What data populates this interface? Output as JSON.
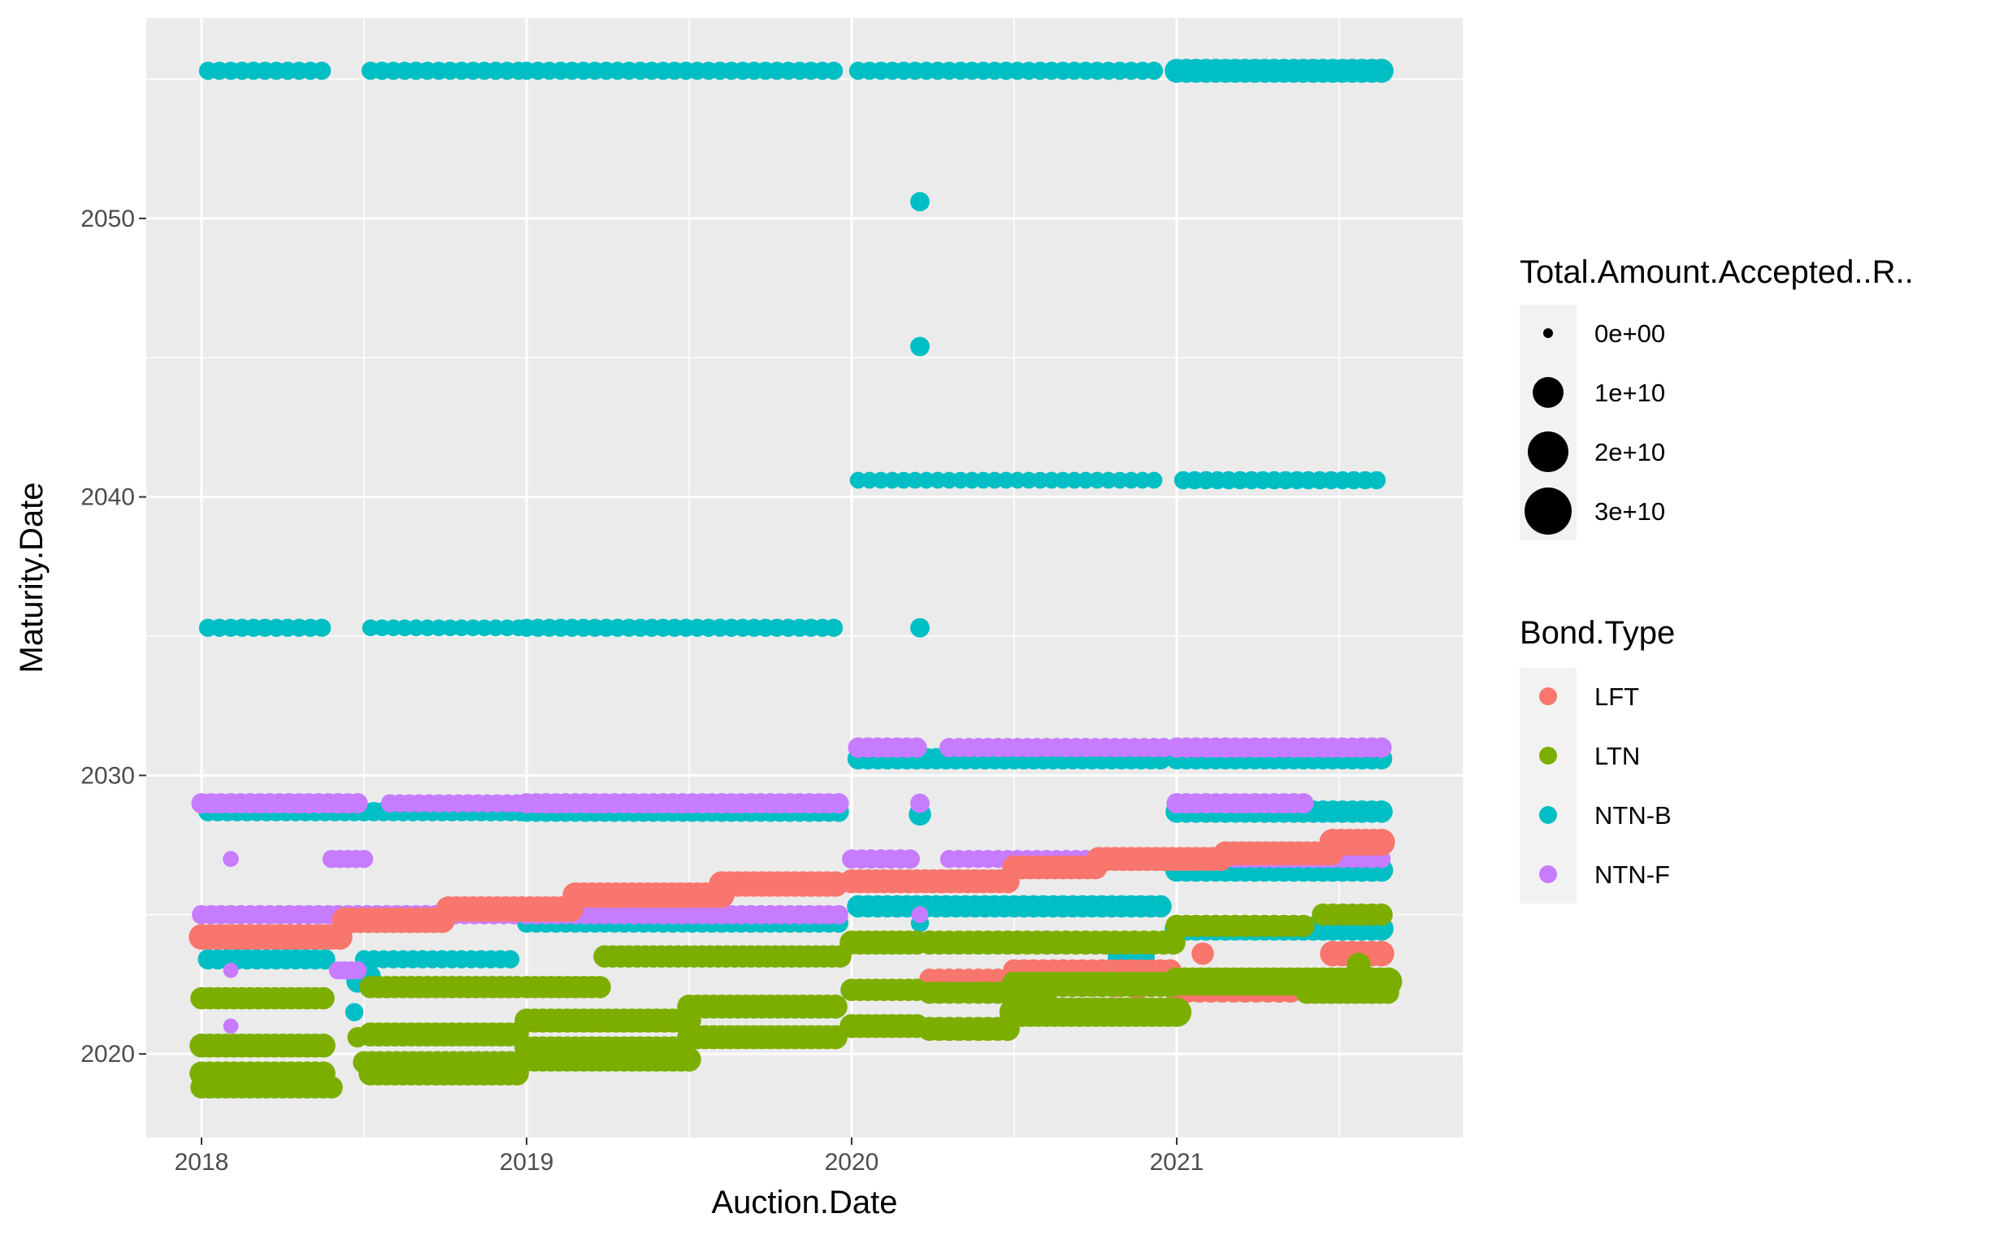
{
  "chart_data": {
    "type": "scatter",
    "title": "",
    "xlabel": "Auction.Date",
    "ylabel": "Maturity.Date",
    "xlim": [
      2017.83,
      2021.88
    ],
    "ylim": [
      2017.0,
      2057.2
    ],
    "x_ticks": [
      2018,
      2019,
      2020,
      2021
    ],
    "x_tick_labels": [
      "2018",
      "2019",
      "2020",
      "2021"
    ],
    "y_ticks": [
      2020,
      2030,
      2040,
      2050
    ],
    "y_tick_labels": [
      "2020",
      "2030",
      "2040",
      "2050"
    ],
    "grid": true,
    "legend_position": "right",
    "size_legend": {
      "title": "Total.Amount.Accepted..R..",
      "labels": [
        "0e+00",
        "1e+10",
        "2e+10",
        "3e+10"
      ],
      "values": [
        0,
        10000000000,
        20000000000,
        30000000000
      ]
    },
    "color_legend": {
      "title": "Bond.Type",
      "labels": [
        "LFT",
        "LTN",
        "NTN-B",
        "NTN-F"
      ],
      "colors": [
        "#F8766D",
        "#7CAE00",
        "#00BFC4",
        "#C77CFF"
      ]
    },
    "series": [
      {
        "name": "NTN-B",
        "color": "#00BFC4",
        "bands": [
          {
            "y": 2055.3,
            "x_start": 2018.02,
            "x_end": 2018.38,
            "step": 0.035,
            "size": 2000000000.0
          },
          {
            "y": 2055.3,
            "x_start": 2018.52,
            "x_end": 2018.98,
            "step": 0.035,
            "size": 2000000000.0
          },
          {
            "y": 2055.3,
            "x_start": 2019.0,
            "x_end": 2019.97,
            "step": 0.035,
            "size": 2000000000.0
          },
          {
            "y": 2055.3,
            "x_start": 2020.02,
            "x_end": 2020.96,
            "step": 0.035,
            "size": 2000000000.0
          },
          {
            "y": 2055.3,
            "x_start": 2021.0,
            "x_end": 2021.64,
            "step": 0.03,
            "size": 5000000000.0
          },
          {
            "y": 2035.3,
            "x_start": 2018.02,
            "x_end": 2018.38,
            "step": 0.035,
            "size": 2000000000.0
          },
          {
            "y": 2035.3,
            "x_start": 2018.52,
            "x_end": 2018.98,
            "step": 0.035,
            "size": 1500000000.0
          },
          {
            "y": 2035.3,
            "x_start": 2019.0,
            "x_end": 2019.97,
            "step": 0.035,
            "size": 2000000000.0
          },
          {
            "y": 2040.6,
            "x_start": 2020.02,
            "x_end": 2020.96,
            "step": 0.035,
            "size": 1500000000.0
          },
          {
            "y": 2040.6,
            "x_start": 2021.02,
            "x_end": 2021.64,
            "step": 0.035,
            "size": 2000000000.0
          },
          {
            "y": 2030.6,
            "x_start": 2020.02,
            "x_end": 2020.96,
            "step": 0.03,
            "size": 3500000000.0
          },
          {
            "y": 2030.6,
            "x_start": 2021.0,
            "x_end": 2021.64,
            "step": 0.03,
            "size": 3500000000.0
          },
          {
            "y": 2028.7,
            "x_start": 2018.02,
            "x_end": 2018.98,
            "step": 0.03,
            "size": 2500000000.0
          },
          {
            "y": 2028.7,
            "x_start": 2019.0,
            "x_end": 2019.97,
            "step": 0.03,
            "size": 3000000000.0
          },
          {
            "y": 2028.7,
            "x_start": 2021.0,
            "x_end": 2021.64,
            "step": 0.03,
            "size": 4000000000.0
          },
          {
            "y": 2025.3,
            "x_start": 2020.02,
            "x_end": 2020.96,
            "step": 0.03,
            "size": 4000000000.0
          },
          {
            "y": 2024.7,
            "x_start": 2019.0,
            "x_end": 2019.97,
            "step": 0.03,
            "size": 2500000000.0
          },
          {
            "y": 2024.5,
            "x_start": 2021.0,
            "x_end": 2021.64,
            "step": 0.03,
            "size": 5000000000.0
          },
          {
            "y": 2023.4,
            "x_start": 2018.02,
            "x_end": 2018.38,
            "step": 0.03,
            "size": 3000000000.0
          },
          {
            "y": 2023.4,
            "x_start": 2018.5,
            "x_end": 2018.96,
            "step": 0.03,
            "size": 2000000000.0
          },
          {
            "y": 2026.6,
            "x_start": 2021.0,
            "x_end": 2021.64,
            "step": 0.03,
            "size": 4500000000.0
          }
        ],
        "points": [
          {
            "x": 2020.21,
            "y": 2050.6,
            "size": 2500000000.0
          },
          {
            "x": 2020.21,
            "y": 2045.4,
            "size": 2500000000.0
          },
          {
            "x": 2020.21,
            "y": 2035.3,
            "size": 2500000000.0
          },
          {
            "x": 2020.21,
            "y": 2028.6,
            "size": 4000000000.0
          },
          {
            "x": 2020.21,
            "y": 2024.7,
            "size": 2000000000.0
          },
          {
            "x": 2018.47,
            "y": 2021.5,
            "size": 2000000000.0
          },
          {
            "x": 2018.48,
            "y": 2022.6,
            "size": 4000000000.0
          },
          {
            "x": 2018.52,
            "y": 2022.8,
            "size": 3000000000.0
          },
          {
            "x": 2020.86,
            "y": 2023.4,
            "size": 30000000000.0
          }
        ]
      },
      {
        "name": "NTN-F",
        "color": "#C77CFF",
        "bands": [
          {
            "y": 2029.0,
            "x_start": 2018.0,
            "x_end": 2018.5,
            "step": 0.03,
            "size": 3000000000.0
          },
          {
            "y": 2029.0,
            "x_start": 2018.58,
            "x_end": 2018.98,
            "step": 0.03,
            "size": 2000000000.0
          },
          {
            "y": 2029.0,
            "x_start": 2019.0,
            "x_end": 2019.97,
            "step": 0.03,
            "size": 3000000000.0
          },
          {
            "y": 2025.0,
            "x_start": 2018.0,
            "x_end": 2018.98,
            "step": 0.03,
            "size": 2500000000.0
          },
          {
            "y": 2025.0,
            "x_start": 2019.0,
            "x_end": 2019.97,
            "step": 0.03,
            "size": 2500000000.0
          },
          {
            "y": 2027.0,
            "x_start": 2020.0,
            "x_end": 2020.2,
            "step": 0.03,
            "size": 2500000000.0
          },
          {
            "y": 2027.0,
            "x_start": 2020.3,
            "x_end": 2020.96,
            "step": 0.03,
            "size": 2000000000.0
          },
          {
            "y": 2027.0,
            "x_start": 2021.0,
            "x_end": 2021.64,
            "step": 0.03,
            "size": 2000000000.0
          },
          {
            "y": 2031.0,
            "x_start": 2020.02,
            "x_end": 2020.2,
            "step": 0.03,
            "size": 3000000000.0
          },
          {
            "y": 2031.0,
            "x_start": 2020.3,
            "x_end": 2020.96,
            "step": 0.03,
            "size": 2500000000.0
          },
          {
            "y": 2031.0,
            "x_start": 2021.0,
            "x_end": 2021.64,
            "step": 0.03,
            "size": 3000000000.0
          },
          {
            "y": 2029.0,
            "x_start": 2021.0,
            "x_end": 2021.4,
            "step": 0.03,
            "size": 3000000000.0
          },
          {
            "y": 2027.0,
            "x_start": 2018.4,
            "x_end": 2018.52,
            "step": 0.025,
            "size": 2000000000.0
          },
          {
            "y": 2023.0,
            "x_start": 2018.42,
            "x_end": 2018.48,
            "step": 0.02,
            "size": 2000000000.0
          }
        ],
        "points": [
          {
            "x": 2018.09,
            "y": 2027.0,
            "size": 1200000000.0
          },
          {
            "x": 2018.09,
            "y": 2021.0,
            "size": 1000000000.0
          },
          {
            "x": 2018.09,
            "y": 2023.0,
            "size": 1000000000.0
          },
          {
            "x": 2020.21,
            "y": 2029.0,
            "size": 2500000000.0
          },
          {
            "x": 2020.21,
            "y": 2025.0,
            "size": 1500000000.0
          }
        ]
      },
      {
        "name": "LFT",
        "color": "#F8766D",
        "bands": [
          {
            "y": 2024.2,
            "x_start": 2018.0,
            "x_end": 2018.44,
            "step": 0.025,
            "size": 6000000000.0
          },
          {
            "y": 2024.8,
            "x_start": 2018.44,
            "x_end": 2018.76,
            "step": 0.025,
            "size": 6000000000.0
          },
          {
            "y": 2025.2,
            "x_start": 2018.76,
            "x_end": 2019.15,
            "step": 0.025,
            "size": 6000000000.0
          },
          {
            "y": 2025.7,
            "x_start": 2019.15,
            "x_end": 2019.6,
            "step": 0.025,
            "size": 6000000000.0
          },
          {
            "y": 2026.1,
            "x_start": 2019.6,
            "x_end": 2019.97,
            "step": 0.025,
            "size": 6000000000.0
          },
          {
            "y": 2026.2,
            "x_start": 2020.0,
            "x_end": 2020.28,
            "step": 0.025,
            "size": 5000000000.0
          },
          {
            "y": 2026.2,
            "x_start": 2020.28,
            "x_end": 2020.5,
            "step": 0.025,
            "size": 5000000000.0
          },
          {
            "y": 2026.7,
            "x_start": 2020.5,
            "x_end": 2020.76,
            "step": 0.025,
            "size": 5000000000.0
          },
          {
            "y": 2027.0,
            "x_start": 2020.76,
            "x_end": 2021.15,
            "step": 0.025,
            "size": 5000000000.0
          },
          {
            "y": 2027.2,
            "x_start": 2021.15,
            "x_end": 2021.48,
            "step": 0.025,
            "size": 5000000000.0
          },
          {
            "y": 2027.6,
            "x_start": 2021.48,
            "x_end": 2021.65,
            "step": 0.025,
            "size": 7000000000.0
          },
          {
            "y": 2022.7,
            "x_start": 2020.24,
            "x_end": 2020.6,
            "step": 0.03,
            "size": 3000000000.0
          },
          {
            "y": 2023.0,
            "x_start": 2020.5,
            "x_end": 2021.0,
            "step": 0.03,
            "size": 4000000000.0
          },
          {
            "y": 2022.3,
            "x_start": 2021.0,
            "x_end": 2021.35,
            "step": 0.035,
            "size": 6000000000.0
          },
          {
            "y": 2023.6,
            "x_start": 2021.48,
            "x_end": 2021.65,
            "step": 0.03,
            "size": 6000000000.0
          }
        ],
        "points": [
          {
            "x": 2020.81,
            "y": 2022.4,
            "size": 3000000000.0
          },
          {
            "x": 2020.88,
            "y": 2022.3,
            "size": 3000000000.0
          },
          {
            "x": 2021.08,
            "y": 2023.6,
            "size": 4000000000.0
          }
        ]
      },
      {
        "name": "LTN",
        "color": "#7CAE00",
        "bands": [
          {
            "y": 2022.0,
            "x_start": 2018.0,
            "x_end": 2018.38,
            "step": 0.025,
            "size": 4000000000.0
          },
          {
            "y": 2020.3,
            "x_start": 2018.0,
            "x_end": 2018.38,
            "step": 0.025,
            "size": 5000000000.0
          },
          {
            "y": 2019.3,
            "x_start": 2018.0,
            "x_end": 2018.38,
            "step": 0.025,
            "size": 5000000000.0
          },
          {
            "y": 2018.8,
            "x_start": 2018.0,
            "x_end": 2018.4,
            "step": 0.025,
            "size": 4000000000.0
          },
          {
            "y": 2022.4,
            "x_start": 2018.52,
            "x_end": 2018.98,
            "step": 0.025,
            "size": 4000000000.0
          },
          {
            "y": 2020.7,
            "x_start": 2018.52,
            "x_end": 2018.98,
            "step": 0.025,
            "size": 5000000000.0
          },
          {
            "y": 2019.7,
            "x_start": 2018.5,
            "x_end": 2018.98,
            "step": 0.025,
            "size": 4000000000.0
          },
          {
            "y": 2019.3,
            "x_start": 2018.52,
            "x_end": 2018.98,
            "step": 0.025,
            "size": 5000000000.0
          },
          {
            "y": 2022.4,
            "x_start": 2019.0,
            "x_end": 2019.24,
            "step": 0.025,
            "size": 4000000000.0
          },
          {
            "y": 2021.2,
            "x_start": 2019.0,
            "x_end": 2019.5,
            "step": 0.025,
            "size": 5000000000.0
          },
          {
            "y": 2020.2,
            "x_start": 2019.0,
            "x_end": 2019.48,
            "step": 0.025,
            "size": 5000000000.0
          },
          {
            "y": 2019.8,
            "x_start": 2019.0,
            "x_end": 2019.5,
            "step": 0.025,
            "size": 5000000000.0
          },
          {
            "y": 2023.5,
            "x_start": 2019.24,
            "x_end": 2019.97,
            "step": 0.025,
            "size": 4000000000.0
          },
          {
            "y": 2021.7,
            "x_start": 2019.5,
            "x_end": 2019.97,
            "step": 0.025,
            "size": 5000000000.0
          },
          {
            "y": 2020.6,
            "x_start": 2019.5,
            "x_end": 2019.97,
            "step": 0.025,
            "size": 5000000000.0
          },
          {
            "y": 2024.0,
            "x_start": 2020.0,
            "x_end": 2020.2,
            "step": 0.025,
            "size": 5000000000.0
          },
          {
            "y": 2022.3,
            "x_start": 2020.0,
            "x_end": 2020.2,
            "step": 0.025,
            "size": 4000000000.0
          },
          {
            "y": 2021.0,
            "x_start": 2020.0,
            "x_end": 2020.2,
            "step": 0.025,
            "size": 5000000000.0
          },
          {
            "y": 2024.0,
            "x_start": 2020.24,
            "x_end": 2021.0,
            "step": 0.03,
            "size": 5000000000.0
          },
          {
            "y": 2022.2,
            "x_start": 2020.24,
            "x_end": 2020.6,
            "step": 0.03,
            "size": 4000000000.0
          },
          {
            "y": 2020.9,
            "x_start": 2020.24,
            "x_end": 2020.5,
            "step": 0.03,
            "size": 5000000000.0
          },
          {
            "y": 2021.5,
            "x_start": 2020.5,
            "x_end": 2021.0,
            "step": 0.025,
            "size": 9000000000.0
          },
          {
            "y": 2022.5,
            "x_start": 2020.5,
            "x_end": 2021.0,
            "step": 0.03,
            "size": 6000000000.0
          },
          {
            "y": 2024.6,
            "x_start": 2021.0,
            "x_end": 2021.4,
            "step": 0.03,
            "size": 4000000000.0
          },
          {
            "y": 2022.6,
            "x_start": 2021.0,
            "x_end": 2021.65,
            "step": 0.025,
            "size": 8000000000.0
          },
          {
            "y": 2022.2,
            "x_start": 2021.4,
            "x_end": 2021.65,
            "step": 0.025,
            "size": 4000000000.0
          },
          {
            "y": 2025.0,
            "x_start": 2021.45,
            "x_end": 2021.65,
            "step": 0.03,
            "size": 4000000000.0
          }
        ],
        "points": [
          {
            "x": 2018.48,
            "y": 2020.6,
            "size": 3000000000.0
          },
          {
            "x": 2021.56,
            "y": 2023.2,
            "size": 5000000000.0
          }
        ]
      }
    ]
  }
}
